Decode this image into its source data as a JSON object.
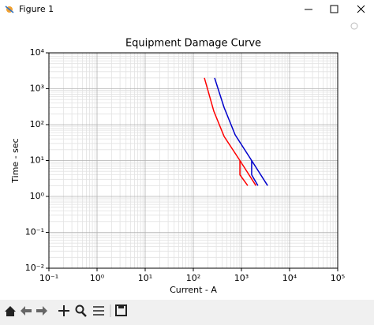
{
  "window": {
    "title": "Figure 1"
  },
  "chart_data": {
    "type": "line",
    "title": "Equipment Damage Curve",
    "x_label": "Current - A",
    "y_label": "Time - sec",
    "log_x": true,
    "log_y": true,
    "grid": true,
    "minor_grid": true,
    "xlim": [
      0.1,
      100000
    ],
    "ylim": [
      0.01,
      10000
    ],
    "xticks": [
      {
        "value": 0.1,
        "label": "10⁻¹"
      },
      {
        "value": 1,
        "label": "10⁰"
      },
      {
        "value": 10,
        "label": "10¹"
      },
      {
        "value": 100,
        "label": "10²"
      },
      {
        "value": 1000,
        "label": "10³"
      },
      {
        "value": 10000,
        "label": "10⁴"
      },
      {
        "value": 100000,
        "label": "10⁵"
      }
    ],
    "yticks": [
      {
        "value": 0.01,
        "label": "10⁻²"
      },
      {
        "value": 0.1,
        "label": "10⁻¹"
      },
      {
        "value": 1,
        "label": "10⁰"
      },
      {
        "value": 10,
        "label": "10¹"
      },
      {
        "value": 100,
        "label": "10²"
      },
      {
        "value": 1000,
        "label": "10³"
      },
      {
        "value": 10000,
        "label": "10⁴"
      }
    ],
    "series": [
      {
        "color": "#ff0000",
        "x": [
          170,
          267,
          436,
          930,
          2000,
          null,
          930,
          930,
          1350
        ],
        "values": [
          2000,
          236,
          47,
          10,
          2,
          null,
          10,
          4,
          2
        ]
      },
      {
        "color": "#0000cc",
        "x": [
          277,
          436,
          740,
          1630,
          3500,
          null,
          1630,
          1630,
          2200
        ],
        "values": [
          2000,
          300,
          52,
          10,
          2,
          null,
          10,
          4,
          2
        ]
      }
    ]
  }
}
